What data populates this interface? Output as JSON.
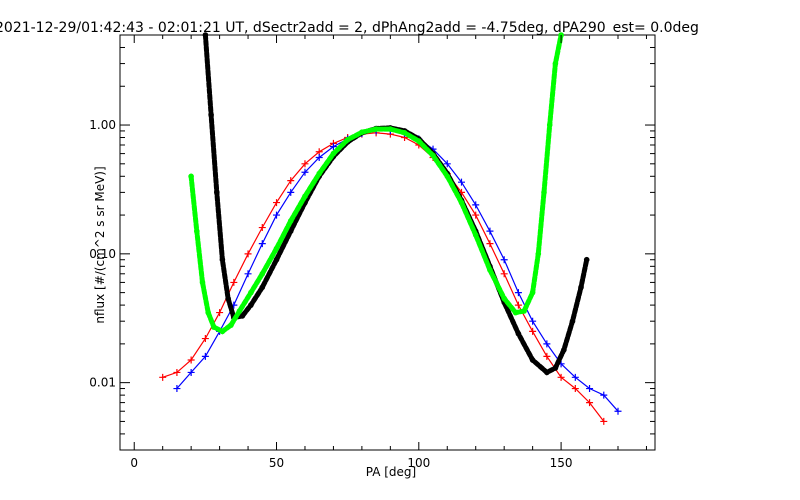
{
  "chart_data": {
    "type": "scatter",
    "title": "2021-12-29/01:42:43 - 02:01:21 UT, dSectr2add = 2, dPhAng2add = -4.75deg, dPA290_est=   0.0deg",
    "xlabel": "PA [deg]",
    "ylabel": "nflux [#/(cm^2 s sr MeV)]",
    "xlim": [
      -5,
      183
    ],
    "ylim": [
      0.003,
      5.0
    ],
    "y_scale": "log",
    "x_ticks": [
      "0",
      "50",
      "100",
      "150"
    ],
    "y_ticks": [
      "0.01",
      "0.10",
      "1.00"
    ],
    "grid": false,
    "colors": {
      "red": "#ff0000",
      "blue": "#0000ff",
      "black": "#000000",
      "green": "#00ff00"
    },
    "series": [
      {
        "color": "#ff0000",
        "x": [
          10,
          15,
          20,
          25,
          30,
          35,
          40,
          45,
          50,
          55,
          60,
          65,
          70,
          75,
          80,
          85,
          90,
          95,
          100,
          105,
          110,
          115,
          120,
          125,
          130,
          135,
          140,
          145,
          150,
          155,
          160,
          165
        ],
        "y": [
          0.011,
          0.012,
          0.015,
          0.022,
          0.035,
          0.06,
          0.1,
          0.16,
          0.25,
          0.37,
          0.5,
          0.62,
          0.72,
          0.8,
          0.85,
          0.87,
          0.85,
          0.8,
          0.7,
          0.56,
          0.42,
          0.3,
          0.2,
          0.12,
          0.07,
          0.04,
          0.025,
          0.016,
          0.011,
          0.009,
          0.007,
          0.005
        ]
      },
      {
        "color": "#0000ff",
        "x": [
          15,
          20,
          25,
          30,
          35,
          40,
          45,
          50,
          55,
          60,
          65,
          70,
          75,
          80,
          85,
          90,
          95,
          100,
          105,
          110,
          115,
          120,
          125,
          130,
          135,
          140,
          145,
          150,
          155,
          160,
          165,
          170
        ],
        "y": [
          0.009,
          0.012,
          0.016,
          0.025,
          0.04,
          0.07,
          0.12,
          0.2,
          0.3,
          0.43,
          0.56,
          0.68,
          0.78,
          0.86,
          0.9,
          0.9,
          0.86,
          0.78,
          0.65,
          0.5,
          0.36,
          0.24,
          0.15,
          0.09,
          0.05,
          0.03,
          0.02,
          0.014,
          0.011,
          0.009,
          0.008,
          0.006
        ]
      },
      {
        "color": "#000000",
        "x": [
          25,
          27,
          29,
          31,
          33,
          35,
          38,
          41,
          45,
          50,
          55,
          60,
          65,
          70,
          75,
          80,
          85,
          90,
          95,
          100,
          105,
          110,
          115,
          120,
          125,
          130,
          135,
          140,
          145,
          148,
          151,
          154,
          157,
          159
        ],
        "y": [
          5.0,
          1.2,
          0.3,
          0.09,
          0.045,
          0.032,
          0.033,
          0.04,
          0.055,
          0.09,
          0.15,
          0.25,
          0.4,
          0.57,
          0.74,
          0.87,
          0.94,
          0.95,
          0.9,
          0.78,
          0.6,
          0.42,
          0.26,
          0.15,
          0.08,
          0.042,
          0.024,
          0.015,
          0.012,
          0.013,
          0.018,
          0.03,
          0.055,
          0.09
        ]
      },
      {
        "color": "#00ff00",
        "x": [
          20,
          22,
          24,
          26,
          28,
          31,
          34,
          37,
          41,
          45,
          50,
          55,
          60,
          65,
          70,
          75,
          80,
          85,
          90,
          95,
          100,
          105,
          110,
          115,
          120,
          125,
          130,
          134,
          137,
          140,
          142,
          144,
          146,
          148,
          150
        ],
        "y": [
          0.4,
          0.15,
          0.06,
          0.035,
          0.027,
          0.025,
          0.028,
          0.036,
          0.05,
          0.07,
          0.11,
          0.18,
          0.28,
          0.42,
          0.6,
          0.77,
          0.88,
          0.93,
          0.93,
          0.87,
          0.75,
          0.58,
          0.4,
          0.25,
          0.14,
          0.075,
          0.045,
          0.035,
          0.036,
          0.05,
          0.1,
          0.3,
          1.0,
          3.0,
          5.0
        ]
      }
    ]
  }
}
